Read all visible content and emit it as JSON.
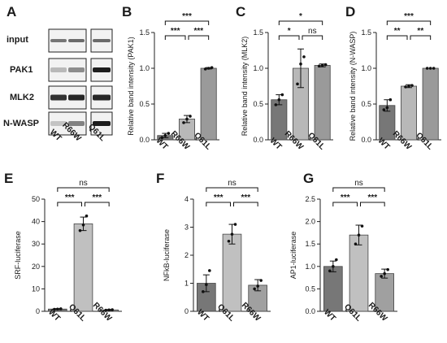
{
  "panel_letters": [
    "A",
    "B",
    "C",
    "D",
    "E",
    "F",
    "G"
  ],
  "blot": {
    "rows": [
      "input",
      "PAK1",
      "MLK2",
      "N-WASP"
    ],
    "lanes": [
      "WT",
      "R66W",
      "Q61L"
    ]
  },
  "colors": {
    "WT": "#777777",
    "mid": "#b8b8b8",
    "right": "#9a9a9a",
    "Q61L_top": "#999999"
  },
  "chart_data": [
    {
      "type": "bar",
      "panel": "B",
      "categories": [
        "WT",
        "R66W",
        "Q61L"
      ],
      "values": [
        0.06,
        0.29,
        1.0
      ],
      "errors": [
        0.03,
        0.05,
        0.01
      ],
      "points": [
        [
          0.03,
          0.06,
          0.09
        ],
        [
          0.24,
          0.29,
          0.33
        ],
        [
          0.99,
          1.0,
          1.01
        ]
      ],
      "ylabel": "Relative band intensity (PAK1)",
      "ylim": [
        0,
        1.5
      ],
      "yticks": [
        "0.0",
        "0.5",
        "1.0",
        "1.5"
      ],
      "comparisons": [
        {
          "from": 0,
          "to": 1,
          "label": "***",
          "level": 0
        },
        {
          "from": 1,
          "to": 2,
          "label": "***",
          "level": 0
        },
        {
          "from": 0,
          "to": 2,
          "label": "***",
          "level": 1
        }
      ]
    },
    {
      "type": "bar",
      "panel": "C",
      "categories": [
        "WT",
        "R66W",
        "Q61L"
      ],
      "values": [
        0.56,
        1.0,
        1.04
      ],
      "errors": [
        0.07,
        0.27,
        0.02
      ],
      "points": [
        [
          0.49,
          0.56,
          0.63
        ],
        [
          0.78,
          1.06,
          1.16
        ],
        [
          1.03,
          1.04,
          1.05
        ]
      ],
      "ylabel": "Relative band intensity (MLK2)",
      "ylim": [
        0,
        1.5
      ],
      "yticks": [
        "0.0",
        "0.5",
        "1.0",
        "1.5"
      ],
      "comparisons": [
        {
          "from": 0,
          "to": 1,
          "label": "*",
          "level": 0
        },
        {
          "from": 1,
          "to": 2,
          "label": "ns",
          "level": 0
        },
        {
          "from": 0,
          "to": 2,
          "label": "*",
          "level": 1
        }
      ]
    },
    {
      "type": "bar",
      "panel": "D",
      "categories": [
        "WT",
        "R66W",
        "Q61L"
      ],
      "values": [
        0.48,
        0.75,
        1.0
      ],
      "errors": [
        0.08,
        0.02,
        0.0
      ],
      "points": [
        [
          0.42,
          0.45,
          0.56
        ],
        [
          0.74,
          0.75,
          0.76
        ],
        [
          1.0,
          1.0,
          1.0
        ]
      ],
      "ylabel": "Relative band intensity (N-WASP)",
      "ylim": [
        0,
        1.5
      ],
      "yticks": [
        "0.0",
        "0.5",
        "1.0",
        "1.5"
      ],
      "comparisons": [
        {
          "from": 0,
          "to": 1,
          "label": "**",
          "level": 0
        },
        {
          "from": 1,
          "to": 2,
          "label": "**",
          "level": 0
        },
        {
          "from": 0,
          "to": 2,
          "label": "***",
          "level": 1
        }
      ]
    },
    {
      "type": "bar",
      "panel": "E",
      "categories": [
        "WT",
        "Q61L",
        "R66W"
      ],
      "values": [
        1.0,
        39.0,
        0.6
      ],
      "errors": [
        0.2,
        3.0,
        0.2
      ],
      "points": [
        [
          0.9,
          1.0,
          1.1
        ],
        [
          36.0,
          38.5,
          42.5
        ],
        [
          0.5,
          0.6,
          0.7
        ]
      ],
      "ylabel": "SRF-luciferase",
      "ylim": [
        0,
        50
      ],
      "yticks": [
        "0",
        "10",
        "20",
        "30",
        "40",
        "50"
      ],
      "comparisons": [
        {
          "from": 0,
          "to": 1,
          "label": "***",
          "level": 0
        },
        {
          "from": 1,
          "to": 2,
          "label": "***",
          "level": 0
        },
        {
          "from": 0,
          "to": 2,
          "label": "ns",
          "level": 1
        }
      ]
    },
    {
      "type": "bar",
      "panel": "F",
      "categories": [
        "WT",
        "Q61L",
        "R66W"
      ],
      "values": [
        1.0,
        2.75,
        0.93
      ],
      "errors": [
        0.3,
        0.35,
        0.2
      ],
      "points": [
        [
          0.7,
          0.95,
          1.45
        ],
        [
          2.5,
          2.75,
          3.1
        ],
        [
          0.8,
          0.9,
          1.1
        ]
      ],
      "ylabel": "NFkB-luciferase",
      "ylim": [
        0,
        4
      ],
      "yticks": [
        "0",
        "1",
        "2",
        "3",
        "4"
      ],
      "comparisons": [
        {
          "from": 0,
          "to": 1,
          "label": "***",
          "level": 0
        },
        {
          "from": 1,
          "to": 2,
          "label": "***",
          "level": 0
        },
        {
          "from": 0,
          "to": 2,
          "label": "ns",
          "level": 1
        }
      ]
    },
    {
      "type": "bar",
      "panel": "G",
      "categories": [
        "WT",
        "Q61L",
        "R66W"
      ],
      "values": [
        1.0,
        1.7,
        0.84
      ],
      "errors": [
        0.12,
        0.22,
        0.1
      ],
      "points": [
        [
          0.9,
          1.0,
          1.15
        ],
        [
          1.5,
          1.7,
          1.9
        ],
        [
          0.78,
          0.84,
          0.93
        ]
      ],
      "ylabel": "AP1-luciferase",
      "ylim": [
        0,
        2.5
      ],
      "yticks": [
        "0.0",
        "0.5",
        "1.0",
        "1.5",
        "2.0",
        "2.5"
      ],
      "comparisons": [
        {
          "from": 0,
          "to": 1,
          "label": "***",
          "level": 0
        },
        {
          "from": 1,
          "to": 2,
          "label": "***",
          "level": 0
        },
        {
          "from": 0,
          "to": 2,
          "label": "ns",
          "level": 1
        }
      ]
    }
  ]
}
